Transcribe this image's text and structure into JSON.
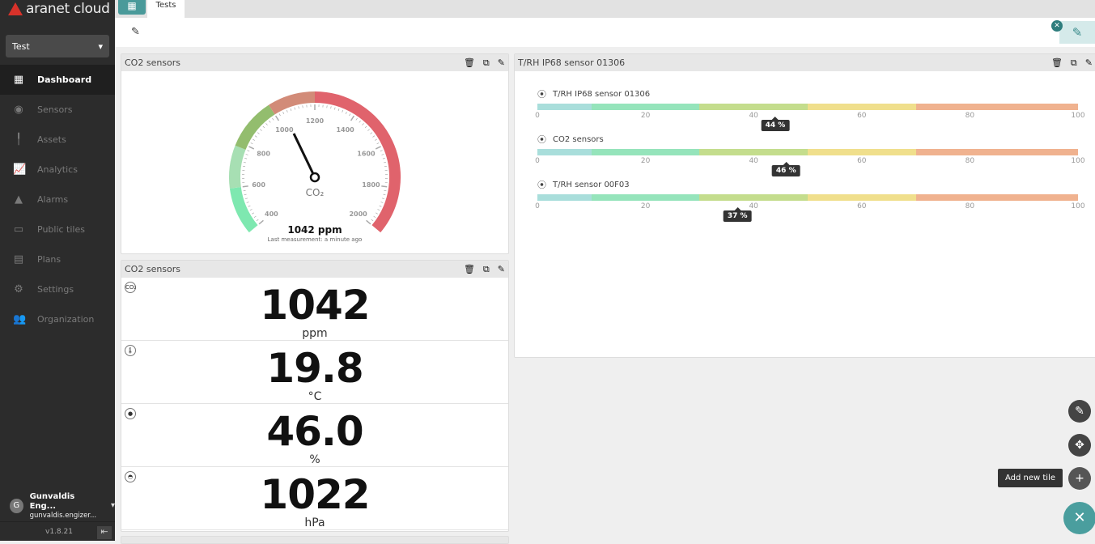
{
  "app": {
    "logo_text": "aranet cloud",
    "dashboard_select": "Test",
    "version": "v1.8.21"
  },
  "sidebar": {
    "items": [
      {
        "label": "Dashboard",
        "icon": "dashboard-icon",
        "glyph": "▦",
        "active": true
      },
      {
        "label": "Sensors",
        "icon": "sensor-icon",
        "glyph": "◉"
      },
      {
        "label": "Assets",
        "icon": "asset-icon",
        "glyph": "╿"
      },
      {
        "label": "Analytics",
        "icon": "analytics-icon",
        "glyph": "📈"
      },
      {
        "label": "Alarms",
        "icon": "alarm-icon",
        "glyph": "▲"
      },
      {
        "label": "Public tiles",
        "icon": "public-tiles-icon",
        "glyph": "▭"
      },
      {
        "label": "Plans",
        "icon": "plans-icon",
        "glyph": "▤"
      },
      {
        "label": "Settings",
        "icon": "gear-icon",
        "glyph": "⚙"
      },
      {
        "label": "Organization",
        "icon": "people-icon",
        "glyph": "👥"
      }
    ]
  },
  "user": {
    "initial": "G",
    "name": "Gunvaldis Eng...",
    "email": "gunvaldis.engizer..."
  },
  "tabs": [
    {
      "label": "Tests"
    }
  ],
  "gauge_tile": {
    "title": "CO2 sensors",
    "label": "CO₂",
    "value_text": "1042 ppm",
    "subtitle": "Last measurement: a minute ago",
    "value": 1042,
    "min": 400,
    "max": 2000,
    "tick_labels": [
      400,
      600,
      800,
      1000,
      1200,
      1400,
      1600,
      1800,
      2000
    ],
    "bands": [
      {
        "from": 400,
        "to": 600,
        "color": "#7ee8b0"
      },
      {
        "from": 600,
        "to": 780,
        "color": "#a7dfb3"
      },
      {
        "from": 780,
        "to": 1000,
        "color": "#93bd6e"
      },
      {
        "from": 1000,
        "to": 1200,
        "color": "#d28b78"
      },
      {
        "from": 1200,
        "to": 2000,
        "color": "#e0636c"
      }
    ]
  },
  "values_tile": {
    "title": "CO2 sensors",
    "rows": [
      {
        "icon": "co2-icon",
        "glyph": "CO₂",
        "value": "1042",
        "unit": "ppm"
      },
      {
        "icon": "thermometer-icon",
        "glyph": "🌡",
        "value": "19.8",
        "unit": "°C"
      },
      {
        "icon": "humidity-drop-icon",
        "glyph": "●",
        "value": "46.0",
        "unit": "%"
      },
      {
        "icon": "pressure-gauge-icon",
        "glyph": "◓",
        "value": "1022",
        "unit": "hPa"
      }
    ]
  },
  "battery_tile": {
    "title": "T/RH IP68 sensor 01306",
    "tick_labels": [
      0,
      20,
      40,
      60,
      80,
      100
    ],
    "segments": [
      {
        "from": 0,
        "to": 10,
        "color": "#a9dedb"
      },
      {
        "from": 10,
        "to": 30,
        "color": "#95e4bb"
      },
      {
        "from": 30,
        "to": 50,
        "color": "#c4dd8d"
      },
      {
        "from": 50,
        "to": 70,
        "color": "#f0df8c"
      },
      {
        "from": 70,
        "to": 100,
        "color": "#f0b28f"
      }
    ],
    "items": [
      {
        "name": "T/RH IP68 sensor 01306",
        "value": 44,
        "label": "44 %"
      },
      {
        "name": "CO2 sensors",
        "value": 46,
        "label": "46 %"
      },
      {
        "name": "T/RH sensor 00F03",
        "value": 37,
        "label": "37 %"
      }
    ]
  },
  "fabs": {
    "tooltip": "Add new tile"
  }
}
